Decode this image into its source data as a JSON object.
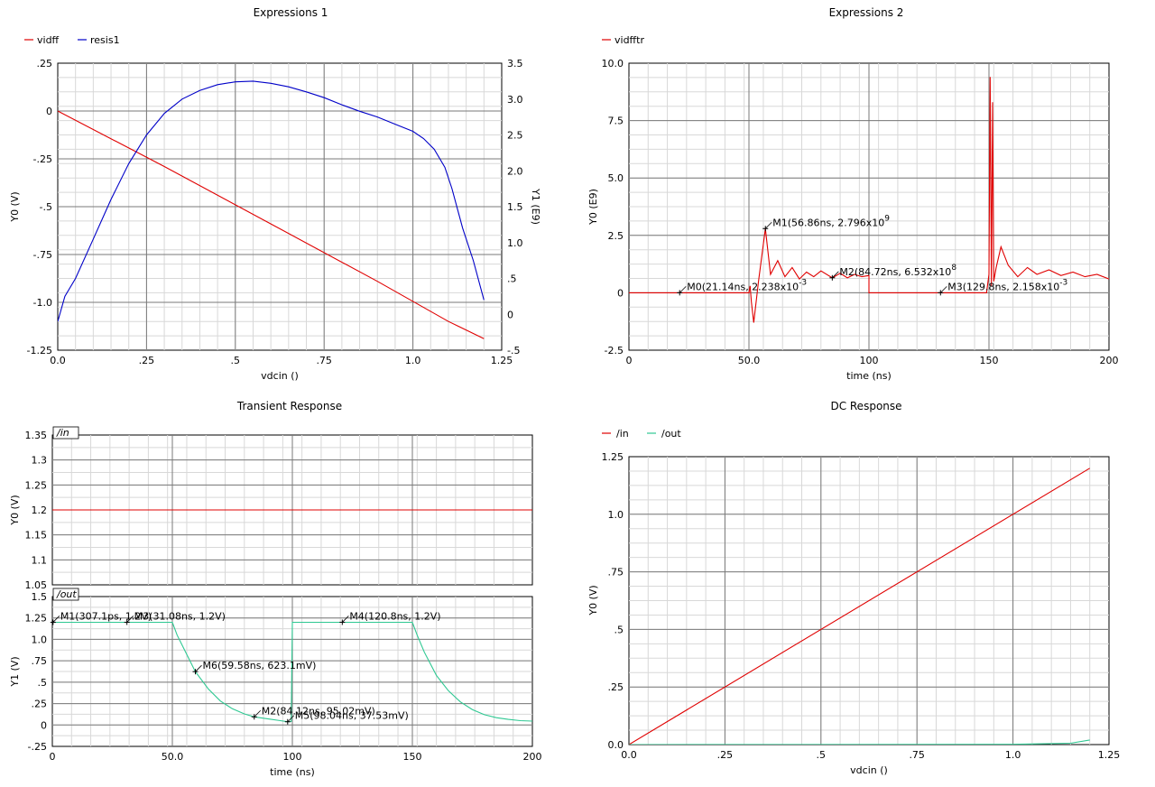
{
  "colors": {
    "red": "#e00000",
    "blue": "#0000c8",
    "green": "#2ec892",
    "grid_major": "#7a7a7a",
    "grid_minor": "#d8d8d8",
    "tag_bg": "#ffffff"
  },
  "chart_data": [
    {
      "id": "expr1",
      "type": "line",
      "title": "Expressions 1",
      "xlabel": "vdcin ()",
      "ylabel": "Y0 (V)",
      "y2label": "Y1 (E9)",
      "xlim": [
        0,
        1.25
      ],
      "ylim": [
        -1.25,
        0.25
      ],
      "y2lim": [
        -0.5,
        3.5
      ],
      "xticks": [
        0,
        0.25,
        0.5,
        0.75,
        1.0,
        1.25
      ],
      "xticklabels": [
        "0.0",
        ".25",
        ".5",
        ".75",
        "1.0",
        "1.25"
      ],
      "yticks": [
        -1.25,
        -1.0,
        -0.75,
        -0.5,
        -0.25,
        0,
        0.25
      ],
      "yticklabels": [
        "-1.25",
        "-1.0",
        "-.75",
        "-.5",
        "-.25",
        "0",
        ".25"
      ],
      "y2ticks": [
        -0.5,
        0,
        0.5,
        1.0,
        1.5,
        2.0,
        2.5,
        3.0,
        3.5
      ],
      "y2ticklabels": [
        "-.5",
        "0",
        ".5",
        "1.0",
        "1.5",
        "2.0",
        "2.5",
        "3.0",
        "3.5"
      ],
      "legend": [
        "vidff",
        "resis1"
      ],
      "series": [
        {
          "name": "vidff",
          "color_key": "red",
          "axis": "y",
          "x": [
            0,
            0.3,
            0.6,
            0.9,
            1.1,
            1.2
          ],
          "y": [
            0,
            -0.29,
            -0.59,
            -0.89,
            -1.1,
            -1.19
          ]
        },
        {
          "name": "resis1",
          "color_key": "blue",
          "axis": "y2",
          "x": [
            0,
            0.02,
            0.05,
            0.1,
            0.15,
            0.2,
            0.25,
            0.3,
            0.35,
            0.4,
            0.45,
            0.5,
            0.55,
            0.6,
            0.65,
            0.7,
            0.75,
            0.8,
            0.85,
            0.9,
            0.95,
            1.0,
            1.03,
            1.06,
            1.09,
            1.11,
            1.14,
            1.17,
            1.2
          ],
          "y": [
            -0.1,
            0.25,
            0.5,
            1.05,
            1.6,
            2.1,
            2.5,
            2.8,
            3.0,
            3.12,
            3.2,
            3.24,
            3.25,
            3.22,
            3.17,
            3.1,
            3.02,
            2.92,
            2.83,
            2.75,
            2.65,
            2.55,
            2.45,
            2.3,
            2.05,
            1.75,
            1.2,
            0.75,
            0.2
          ]
        }
      ]
    },
    {
      "id": "expr2",
      "type": "line",
      "title": "Expressions 2",
      "xlabel": "time (ns)",
      "ylabel": "Y0 (E9)",
      "xlim": [
        0,
        200
      ],
      "ylim": [
        -2.5,
        10.0
      ],
      "xticks": [
        0,
        50,
        100,
        150,
        200
      ],
      "xticklabels": [
        "0",
        "50.0",
        "100",
        "150",
        "200"
      ],
      "yticks": [
        -2.5,
        0,
        2.5,
        5.0,
        7.5,
        10.0
      ],
      "yticklabels": [
        "-2.5",
        "0",
        "2.5",
        "5.0",
        "7.5",
        "10.0"
      ],
      "legend": [
        "vidfftr"
      ],
      "series": [
        {
          "name": "vidfftr",
          "color_key": "red",
          "x": [
            0,
            50,
            50.5,
            51,
            52,
            54,
            56.86,
            59,
            62,
            65,
            68,
            71,
            74,
            77,
            80,
            84.72,
            88,
            91,
            94,
            97,
            100,
            100.01,
            149,
            150,
            150.5,
            151,
            151.5,
            152,
            153,
            155,
            158,
            162,
            166,
            170,
            175,
            180,
            185,
            190,
            195,
            200
          ],
          "y": [
            0,
            0,
            0.3,
            -0.4,
            -1.3,
            0.5,
            2.796,
            0.8,
            1.4,
            0.7,
            1.1,
            0.6,
            0.9,
            0.7,
            0.95,
            0.6532,
            0.85,
            0.65,
            0.8,
            0.7,
            0.75,
            0,
            0,
            0.8,
            9.4,
            0.3,
            8.3,
            0.5,
            1.1,
            2.0,
            1.2,
            0.7,
            1.1,
            0.8,
            1.0,
            0.75,
            0.9,
            0.7,
            0.8,
            0.6
          ]
        }
      ],
      "markers": [
        {
          "label": "M0(21.14ns, 2.238x10",
          "exp": "-3",
          "x": 21.14,
          "y": 0.002
        },
        {
          "label": "M1(56.86ns, 2.796x10",
          "exp": "9",
          "x": 56.86,
          "y": 2.796
        },
        {
          "label": "M2(84.72ns, 6.532x10",
          "exp": "8",
          "x": 84.72,
          "y": 0.6532
        },
        {
          "label": "M3(129.8ns, 2.158x10",
          "exp": "-3",
          "x": 129.8,
          "y": 0.002
        }
      ]
    },
    {
      "id": "tran_in",
      "type": "line",
      "title": "Transient Response",
      "tag": "/in",
      "ylabel": "Y0 (V)",
      "xlim": [
        0,
        200
      ],
      "ylim": [
        1.05,
        1.35
      ],
      "xticks": [
        0,
        50,
        100,
        150,
        200
      ],
      "yticks": [
        1.05,
        1.1,
        1.15,
        1.2,
        1.25,
        1.3,
        1.35
      ],
      "yticklabels": [
        "1.05",
        "1.1",
        "1.15",
        "1.2",
        "1.25",
        "1.3",
        "1.35"
      ],
      "series": [
        {
          "name": "/in",
          "color_key": "red",
          "x": [
            0,
            200
          ],
          "y": [
            1.2,
            1.2
          ]
        }
      ]
    },
    {
      "id": "tran_out",
      "type": "line",
      "tag": "/out",
      "xlabel": "time (ns)",
      "ylabel": "Y1 (V)",
      "xlim": [
        0,
        200
      ],
      "ylim": [
        -0.25,
        1.5
      ],
      "xticks": [
        0,
        50,
        100,
        150,
        200
      ],
      "xticklabels": [
        "0",
        "50.0",
        "100",
        "150",
        "200"
      ],
      "yticks": [
        -0.25,
        0,
        0.25,
        0.5,
        0.75,
        1.0,
        1.25,
        1.5
      ],
      "yticklabels": [
        "-.25",
        "0",
        ".25",
        ".5",
        ".75",
        "1.0",
        "1.25",
        "1.5"
      ],
      "series": [
        {
          "name": "/out",
          "color_key": "green",
          "x": [
            0,
            50,
            52,
            55,
            59.58,
            65,
            70,
            75,
            80,
            84.12,
            90,
            95,
            98.04,
            99.5,
            100,
            150,
            152,
            155,
            160,
            165,
            170,
            175,
            180,
            185,
            190,
            195,
            200
          ],
          "y": [
            1.2,
            1.2,
            1.05,
            0.88,
            0.6231,
            0.42,
            0.28,
            0.19,
            0.13,
            0.095,
            0.07,
            0.05,
            0.0375,
            0.04,
            1.2,
            1.2,
            1.05,
            0.85,
            0.58,
            0.4,
            0.27,
            0.18,
            0.12,
            0.085,
            0.065,
            0.05,
            0.045
          ]
        }
      ],
      "markers": [
        {
          "label": "M1(307.1ps, 1.2V)",
          "x": 0.3071,
          "y": 1.2
        },
        {
          "label": "M3(31.08ns, 1.2V)",
          "x": 31.08,
          "y": 1.2
        },
        {
          "label": "M4(120.8ns, 1.2V)",
          "x": 120.8,
          "y": 1.2
        },
        {
          "label": "M6(59.58ns, 623.1mV)",
          "x": 59.58,
          "y": 0.6231
        },
        {
          "label": "M2(84.12ns, 95.02mV)",
          "x": 84.12,
          "y": 0.095
        },
        {
          "label": "M5(98.04ns, 37.53mV)",
          "x": 98.04,
          "y": 0.0375
        }
      ]
    },
    {
      "id": "dc",
      "type": "line",
      "title": "DC Response",
      "xlabel": "vdcin ()",
      "ylabel": "Y0 (V)",
      "xlim": [
        0,
        1.25
      ],
      "ylim": [
        0,
        1.25
      ],
      "xticks": [
        0,
        0.25,
        0.5,
        0.75,
        1.0,
        1.25
      ],
      "xticklabels": [
        "0.0",
        ".25",
        ".5",
        ".75",
        "1.0",
        "1.25"
      ],
      "yticks": [
        0,
        0.25,
        0.5,
        0.75,
        1.0,
        1.25
      ],
      "yticklabels": [
        "0.0",
        ".25",
        ".5",
        ".75",
        "1.0",
        "1.25"
      ],
      "legend": [
        "/in",
        "/out"
      ],
      "series": [
        {
          "name": "/in",
          "color_key": "red",
          "x": [
            0,
            1.2
          ],
          "y": [
            0,
            1.2
          ]
        },
        {
          "name": "/out",
          "color_key": "green",
          "x": [
            0,
            1.0,
            1.15,
            1.2
          ],
          "y": [
            0,
            0.001,
            0.006,
            0.02
          ]
        }
      ]
    }
  ]
}
